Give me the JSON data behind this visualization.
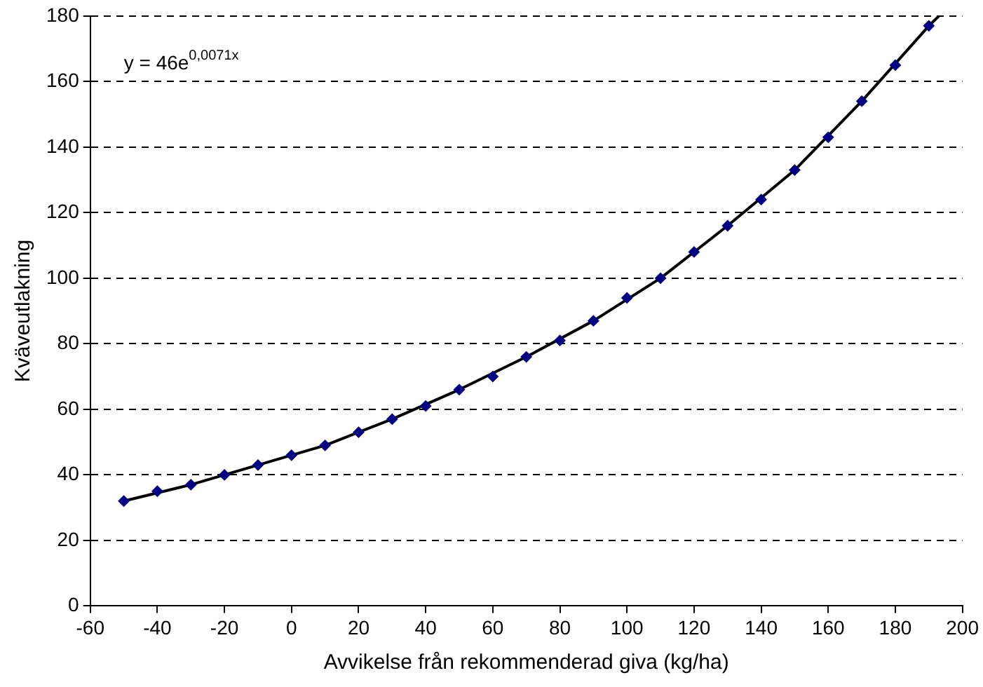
{
  "chart_data": {
    "type": "scatter",
    "xlabel": "Avvikelse från rekommenderad giva (kg/ha)",
    "ylabel": "Kväveutlakning",
    "annotations": [
      "y = 46e$^{0,0071x}$"
    ],
    "x": [
      -50,
      -40,
      -30,
      -20,
      -10,
      0,
      10,
      20,
      30,
      40,
      50,
      60,
      70,
      80,
      90,
      100,
      110,
      120,
      130,
      140,
      150,
      160,
      170,
      180,
      190
    ],
    "series": [
      {
        "color": "#000080",
        "marker": "diamond",
        "values": [
          32,
          35,
          37,
          40,
          43,
          46,
          49,
          53,
          57,
          61,
          66,
          70,
          76,
          81,
          87,
          94,
          100,
          108,
          116,
          124,
          133,
          143,
          154,
          165,
          177
        ]
      },
      {
        "type": "line",
        "color": "#000000",
        "marker": "none",
        "line_style": "solid",
        "x": [
          -50,
          -30,
          -10,
          10,
          30,
          50,
          70,
          90,
          110,
          130,
          150,
          170,
          190,
          193
        ],
        "values": [
          32,
          37,
          43,
          49,
          57,
          66,
          76,
          87,
          100,
          116,
          133,
          154,
          177,
          180
        ]
      }
    ],
    "xlim": [
      -60,
      200
    ],
    "xticks": [
      -60,
      -40,
      -20,
      0,
      20,
      40,
      60,
      80,
      100,
      120,
      140,
      160,
      180,
      200
    ],
    "ylim": [
      0,
      180
    ],
    "yticks": [
      0,
      20,
      40,
      60,
      80,
      100,
      120,
      140,
      160,
      180
    ],
    "grid": "y",
    "legend": false
  }
}
